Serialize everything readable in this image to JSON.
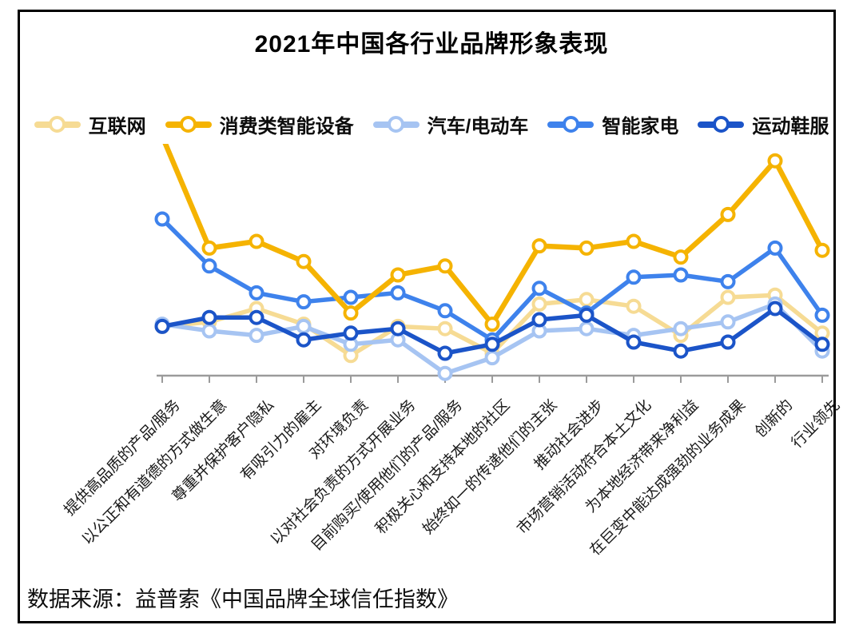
{
  "title": "2021年中国各行业品牌形象表现",
  "source": "数据来源：益普索《中国品牌全球信任指数》",
  "chart_data": {
    "type": "line",
    "title": "2021年中国各行业品牌形象表现",
    "legend_position": "top",
    "y_axis_visible": false,
    "ylim": [
      0,
      100
    ],
    "grid": false,
    "axis_color": "#9b9b9b",
    "categories": [
      "提供高品质的产品/服务",
      "以公正和有道德的方式做生意",
      "尊重并保护客户隐私",
      "有吸引力的雇主",
      "对环境负责",
      "以对社会负责的方式开展业务",
      "目前购买/使用他们的产品/服务",
      "积极关心和支持本地的社区",
      "始终如一的传递他们的主张",
      "推动社会进步",
      "市场营销活动符合本土文化",
      "为本地经济带来净利益",
      "在巨变中能达成强劲的业务成果",
      "创新的",
      "行业领先"
    ],
    "series": [
      {
        "name": "互联网",
        "color": "#F6DB94",
        "values": [
          22,
          24,
          30,
          23,
          9,
          22,
          21,
          10,
          32,
          34,
          31,
          18,
          35,
          36,
          19
        ]
      },
      {
        "name": "消费类智能设备",
        "color": "#F5B301",
        "values": [
          107,
          57,
          60,
          51,
          28,
          45,
          49,
          23,
          58,
          57,
          60,
          53,
          72,
          96,
          56
        ]
      },
      {
        "name": "汽车/电动车",
        "color": "#A6C4F2",
        "values": [
          23,
          20,
          18,
          22,
          14,
          16,
          1,
          8,
          20,
          21,
          18,
          21,
          24,
          32,
          11
        ]
      },
      {
        "name": "智能家电",
        "color": "#3E82EC",
        "values": [
          70,
          49,
          37,
          33,
          35,
          37,
          29,
          16,
          39,
          28,
          44,
          45,
          42,
          57,
          27
        ]
      },
      {
        "name": "运动鞋服",
        "color": "#1B54C8",
        "values": [
          22,
          26,
          26,
          16,
          19,
          21,
          10,
          14,
          25,
          27,
          15,
          11,
          15,
          30,
          14
        ]
      }
    ]
  }
}
